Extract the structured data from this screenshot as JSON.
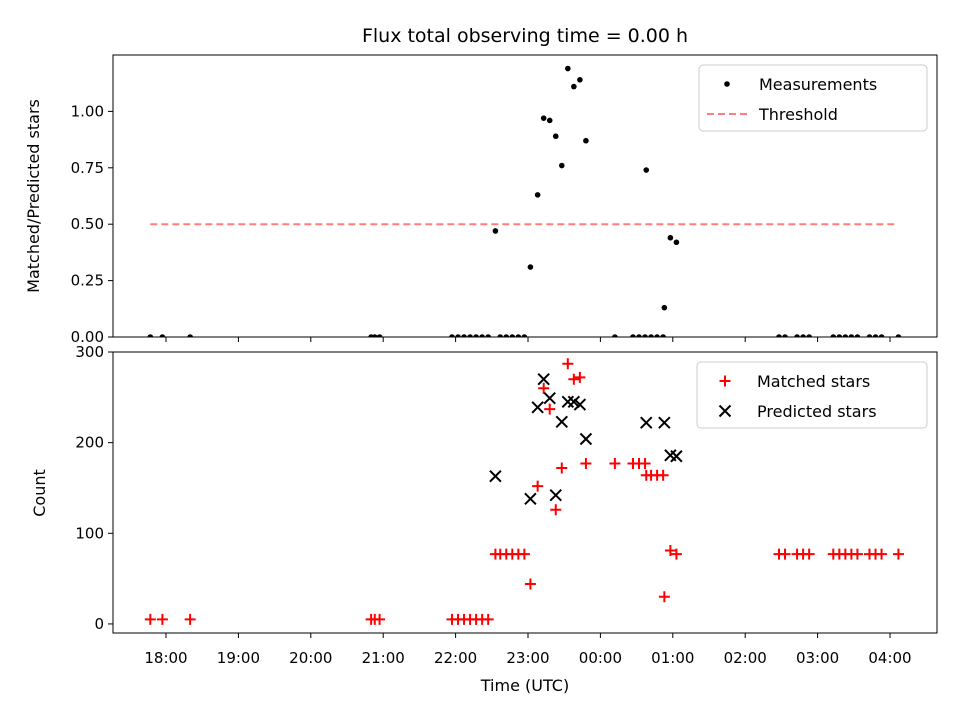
{
  "chart_data": [
    {
      "type": "scatter",
      "title": "Flux total observing time = 0.00 h",
      "xlabel": "",
      "ylabel": "Matched/Predicted stars",
      "xticks": [
        "18:00",
        "19:00",
        "20:00",
        "21:00",
        "22:00",
        "23:00",
        "00:00",
        "01:00",
        "02:00",
        "03:00",
        "04:00"
      ],
      "yticks": [
        "0.00",
        "0.25",
        "0.50",
        "0.75",
        "1.00"
      ],
      "ylim": [
        0,
        1.25
      ],
      "legend": {
        "position": "top-right",
        "entries": [
          "Measurements",
          "Threshold"
        ]
      },
      "series": [
        {
          "name": "Measurements",
          "marker": "dot",
          "color": "#000000",
          "points": [
            [
              "17:47",
              0.0
            ],
            [
              "17:57",
              0.0
            ],
            [
              "18:20",
              0.0
            ],
            [
              "20:50",
              0.0
            ],
            [
              "20:53",
              0.0
            ],
            [
              "20:57",
              0.0
            ],
            [
              "21:57",
              0.0
            ],
            [
              "22:02",
              0.0
            ],
            [
              "22:07",
              0.0
            ],
            [
              "22:12",
              0.0
            ],
            [
              "22:17",
              0.0
            ],
            [
              "22:22",
              0.0
            ],
            [
              "22:27",
              0.0
            ],
            [
              "22:33",
              0.47
            ],
            [
              "22:37",
              0.0
            ],
            [
              "22:42",
              0.0
            ],
            [
              "22:47",
              0.0
            ],
            [
              "22:52",
              0.0
            ],
            [
              "22:57",
              0.0
            ],
            [
              "23:02",
              0.31
            ],
            [
              "23:08",
              0.63
            ],
            [
              "23:13",
              0.97
            ],
            [
              "23:18",
              0.96
            ],
            [
              "23:23",
              0.89
            ],
            [
              "23:28",
              0.76
            ],
            [
              "23:33",
              1.19
            ],
            [
              "23:38",
              1.11
            ],
            [
              "23:43",
              1.14
            ],
            [
              "23:48",
              0.87
            ],
            [
              "00:12",
              0.0
            ],
            [
              "00:27",
              0.0
            ],
            [
              "00:32",
              0.0
            ],
            [
              "00:37",
              0.0
            ],
            [
              "00:38",
              0.74
            ],
            [
              "00:42",
              0.0
            ],
            [
              "00:47",
              0.0
            ],
            [
              "00:52",
              0.0
            ],
            [
              "00:53",
              0.13
            ],
            [
              "00:58",
              0.44
            ],
            [
              "01:03",
              0.42
            ],
            [
              "02:28",
              0.0
            ],
            [
              "02:33",
              0.0
            ],
            [
              "02:43",
              0.0
            ],
            [
              "02:48",
              0.0
            ],
            [
              "02:53",
              0.0
            ],
            [
              "03:13",
              0.0
            ],
            [
              "03:18",
              0.0
            ],
            [
              "03:23",
              0.0
            ],
            [
              "03:28",
              0.0
            ],
            [
              "03:33",
              0.0
            ],
            [
              "03:43",
              0.0
            ],
            [
              "03:48",
              0.0
            ],
            [
              "03:53",
              0.0
            ],
            [
              "04:07",
              0.0
            ]
          ]
        },
        {
          "name": "Threshold",
          "style": "dashed",
          "color": "#ff7f7f",
          "points": [
            [
              "17:47",
              0.5
            ],
            [
              "04:07",
              0.5
            ]
          ]
        }
      ]
    },
    {
      "type": "scatter",
      "title": "",
      "xlabel": "Time (UTC)",
      "ylabel": "Count",
      "xticks": [
        "18:00",
        "19:00",
        "20:00",
        "21:00",
        "22:00",
        "23:00",
        "00:00",
        "01:00",
        "02:00",
        "03:00",
        "04:00"
      ],
      "yticks": [
        "0",
        "100",
        "200",
        "300"
      ],
      "ylim": [
        -10,
        300
      ],
      "legend": {
        "position": "top-right",
        "entries": [
          "Matched stars",
          "Predicted stars"
        ]
      },
      "series": [
        {
          "name": "Matched stars",
          "marker": "plus",
          "color": "#ff0000",
          "points": [
            [
              "17:47",
              5
            ],
            [
              "17:57",
              5
            ],
            [
              "18:20",
              5
            ],
            [
              "20:50",
              5
            ],
            [
              "20:53",
              5
            ],
            [
              "20:57",
              5
            ],
            [
              "21:57",
              5
            ],
            [
              "22:02",
              5
            ],
            [
              "22:07",
              5
            ],
            [
              "22:12",
              5
            ],
            [
              "22:17",
              5
            ],
            [
              "22:22",
              5
            ],
            [
              "22:27",
              5
            ],
            [
              "22:33",
              77
            ],
            [
              "22:37",
              77
            ],
            [
              "22:42",
              77
            ],
            [
              "22:47",
              77
            ],
            [
              "22:52",
              77
            ],
            [
              "22:57",
              77
            ],
            [
              "23:02",
              44
            ],
            [
              "23:08",
              152
            ],
            [
              "23:13",
              260
            ],
            [
              "23:18",
              237
            ],
            [
              "23:23",
              126
            ],
            [
              "23:28",
              172
            ],
            [
              "23:33",
              287
            ],
            [
              "23:38",
              270
            ],
            [
              "23:43",
              272
            ],
            [
              "23:48",
              177
            ],
            [
              "00:12",
              177
            ],
            [
              "00:27",
              177
            ],
            [
              "00:32",
              177
            ],
            [
              "00:37",
              177
            ],
            [
              "00:38",
              164
            ],
            [
              "00:42",
              164
            ],
            [
              "00:47",
              164
            ],
            [
              "00:52",
              164
            ],
            [
              "00:53",
              30
            ],
            [
              "00:58",
              81
            ],
            [
              "01:03",
              77
            ],
            [
              "02:28",
              77
            ],
            [
              "02:33",
              77
            ],
            [
              "02:43",
              77
            ],
            [
              "02:48",
              77
            ],
            [
              "02:53",
              77
            ],
            [
              "03:13",
              77
            ],
            [
              "03:18",
              77
            ],
            [
              "03:23",
              77
            ],
            [
              "03:28",
              77
            ],
            [
              "03:33",
              77
            ],
            [
              "03:43",
              77
            ],
            [
              "03:48",
              77
            ],
            [
              "03:53",
              77
            ],
            [
              "04:07",
              77
            ]
          ]
        },
        {
          "name": "Predicted stars",
          "marker": "x",
          "color": "#000000",
          "points": [
            [
              "22:33",
              163
            ],
            [
              "23:02",
              138
            ],
            [
              "23:08",
              239
            ],
            [
              "23:13",
              270
            ],
            [
              "23:18",
              249
            ],
            [
              "23:23",
              142
            ],
            [
              "23:28",
              223
            ],
            [
              "23:33",
              245
            ],
            [
              "23:38",
              245
            ],
            [
              "23:43",
              242
            ],
            [
              "23:48",
              204
            ],
            [
              "00:38",
              222
            ],
            [
              "00:53",
              222
            ],
            [
              "00:58",
              186
            ],
            [
              "01:03",
              185
            ]
          ]
        }
      ]
    }
  ]
}
